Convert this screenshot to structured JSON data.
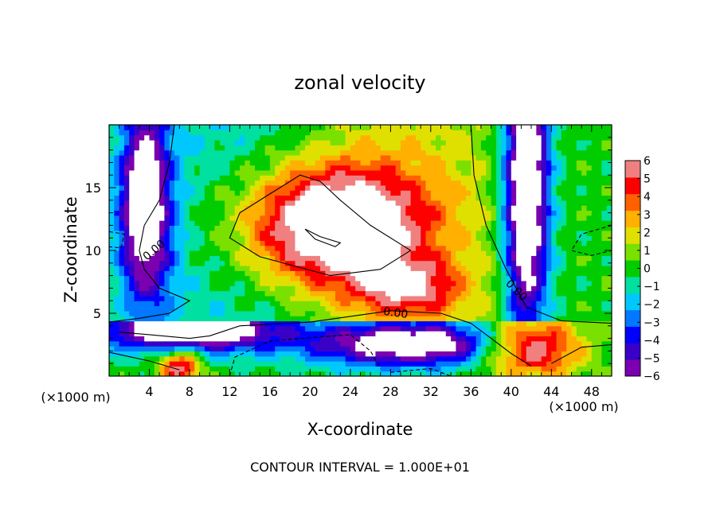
{
  "chart_data": {
    "type": "heatmap",
    "title": "zonal velocity",
    "xlabel": "X-coordinate",
    "ylabel": "Z-coordinate",
    "x_unit_left": "(×1000 m)",
    "x_unit_right": "(×1000 m)",
    "footer": "CONTOUR INTERVAL = 1.000E+01",
    "xlim": [
      0,
      50
    ],
    "ylim": [
      0,
      20
    ],
    "xticks": [
      4,
      8,
      12,
      16,
      20,
      24,
      28,
      32,
      36,
      40,
      44,
      48
    ],
    "yticks": [
      5,
      10,
      15
    ],
    "colorbar": {
      "range": [
        -6,
        6
      ],
      "ticks": [
        6,
        5,
        4,
        3,
        2,
        1,
        0,
        -1,
        -2,
        -3,
        -4,
        -5,
        -6
      ],
      "tick_labels": [
        "6",
        "5",
        "4",
        "3",
        "2",
        "1",
        "0",
        "−1",
        "−2",
        "−3",
        "−4",
        "−5",
        "−6"
      ],
      "colors": [
        "#7a00b0",
        "#3a00c8",
        "#0000ff",
        "#0078ff",
        "#00c8ff",
        "#00e0a0",
        "#00cc00",
        "#7ae000",
        "#e0e000",
        "#ffb000",
        "#ff6000",
        "#ff0000",
        "#f08080"
      ],
      "out_of_range_fill": "#ffffff"
    },
    "contour_labels": [
      {
        "text": "0.00",
        "x": 4.5,
        "z": 10.0,
        "angle": -40
      },
      {
        "text": "0.00",
        "x": 28.5,
        "z": 5.0,
        "angle": 8
      },
      {
        "text": "0.00",
        "x": 40.5,
        "z": 6.8,
        "angle": 45
      }
    ]
  }
}
